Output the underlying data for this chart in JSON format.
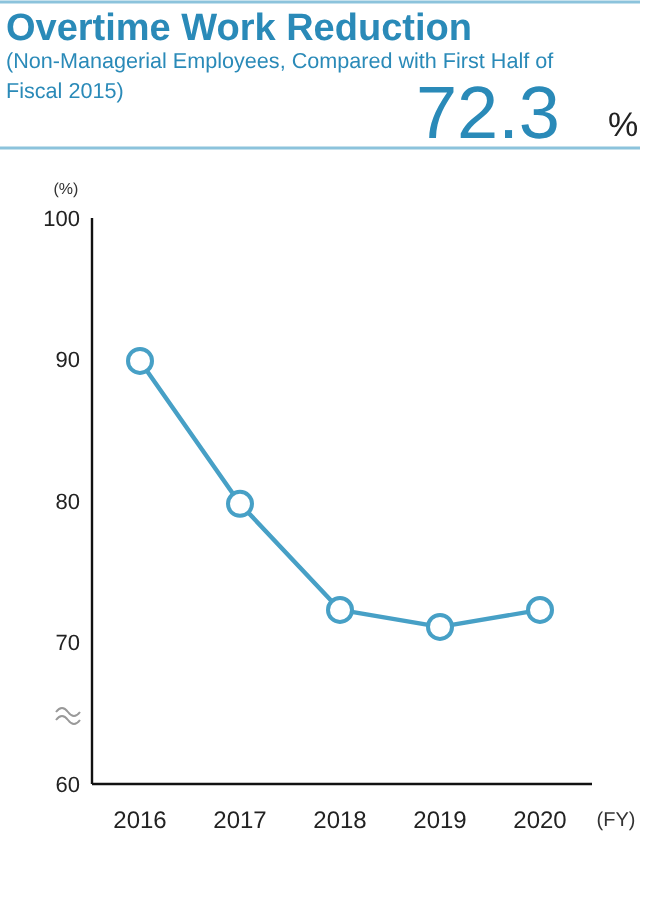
{
  "chart_data": {
    "type": "line",
    "title": "Overtime Work Reduction",
    "subtitle": "(Non-Managerial Employees, Compared with First Half of Fiscal 2015)",
    "annotations": [
      "72.3",
      "%"
    ],
    "ylabel": "(%)",
    "xlabel": "(FY)",
    "categories": [
      "2016",
      "2017",
      "2018",
      "2019",
      "2020"
    ],
    "series": [
      {
        "color": "#47a0c6",
        "values": [
          89.9,
          79.8,
          72.3,
          71.1,
          72.3
        ]
      }
    ],
    "ylim": [
      60,
      100
    ],
    "yticks": [
      60,
      70,
      80,
      90,
      100
    ],
    "grid": false,
    "marker": "circle",
    "line_style": "solid"
  }
}
